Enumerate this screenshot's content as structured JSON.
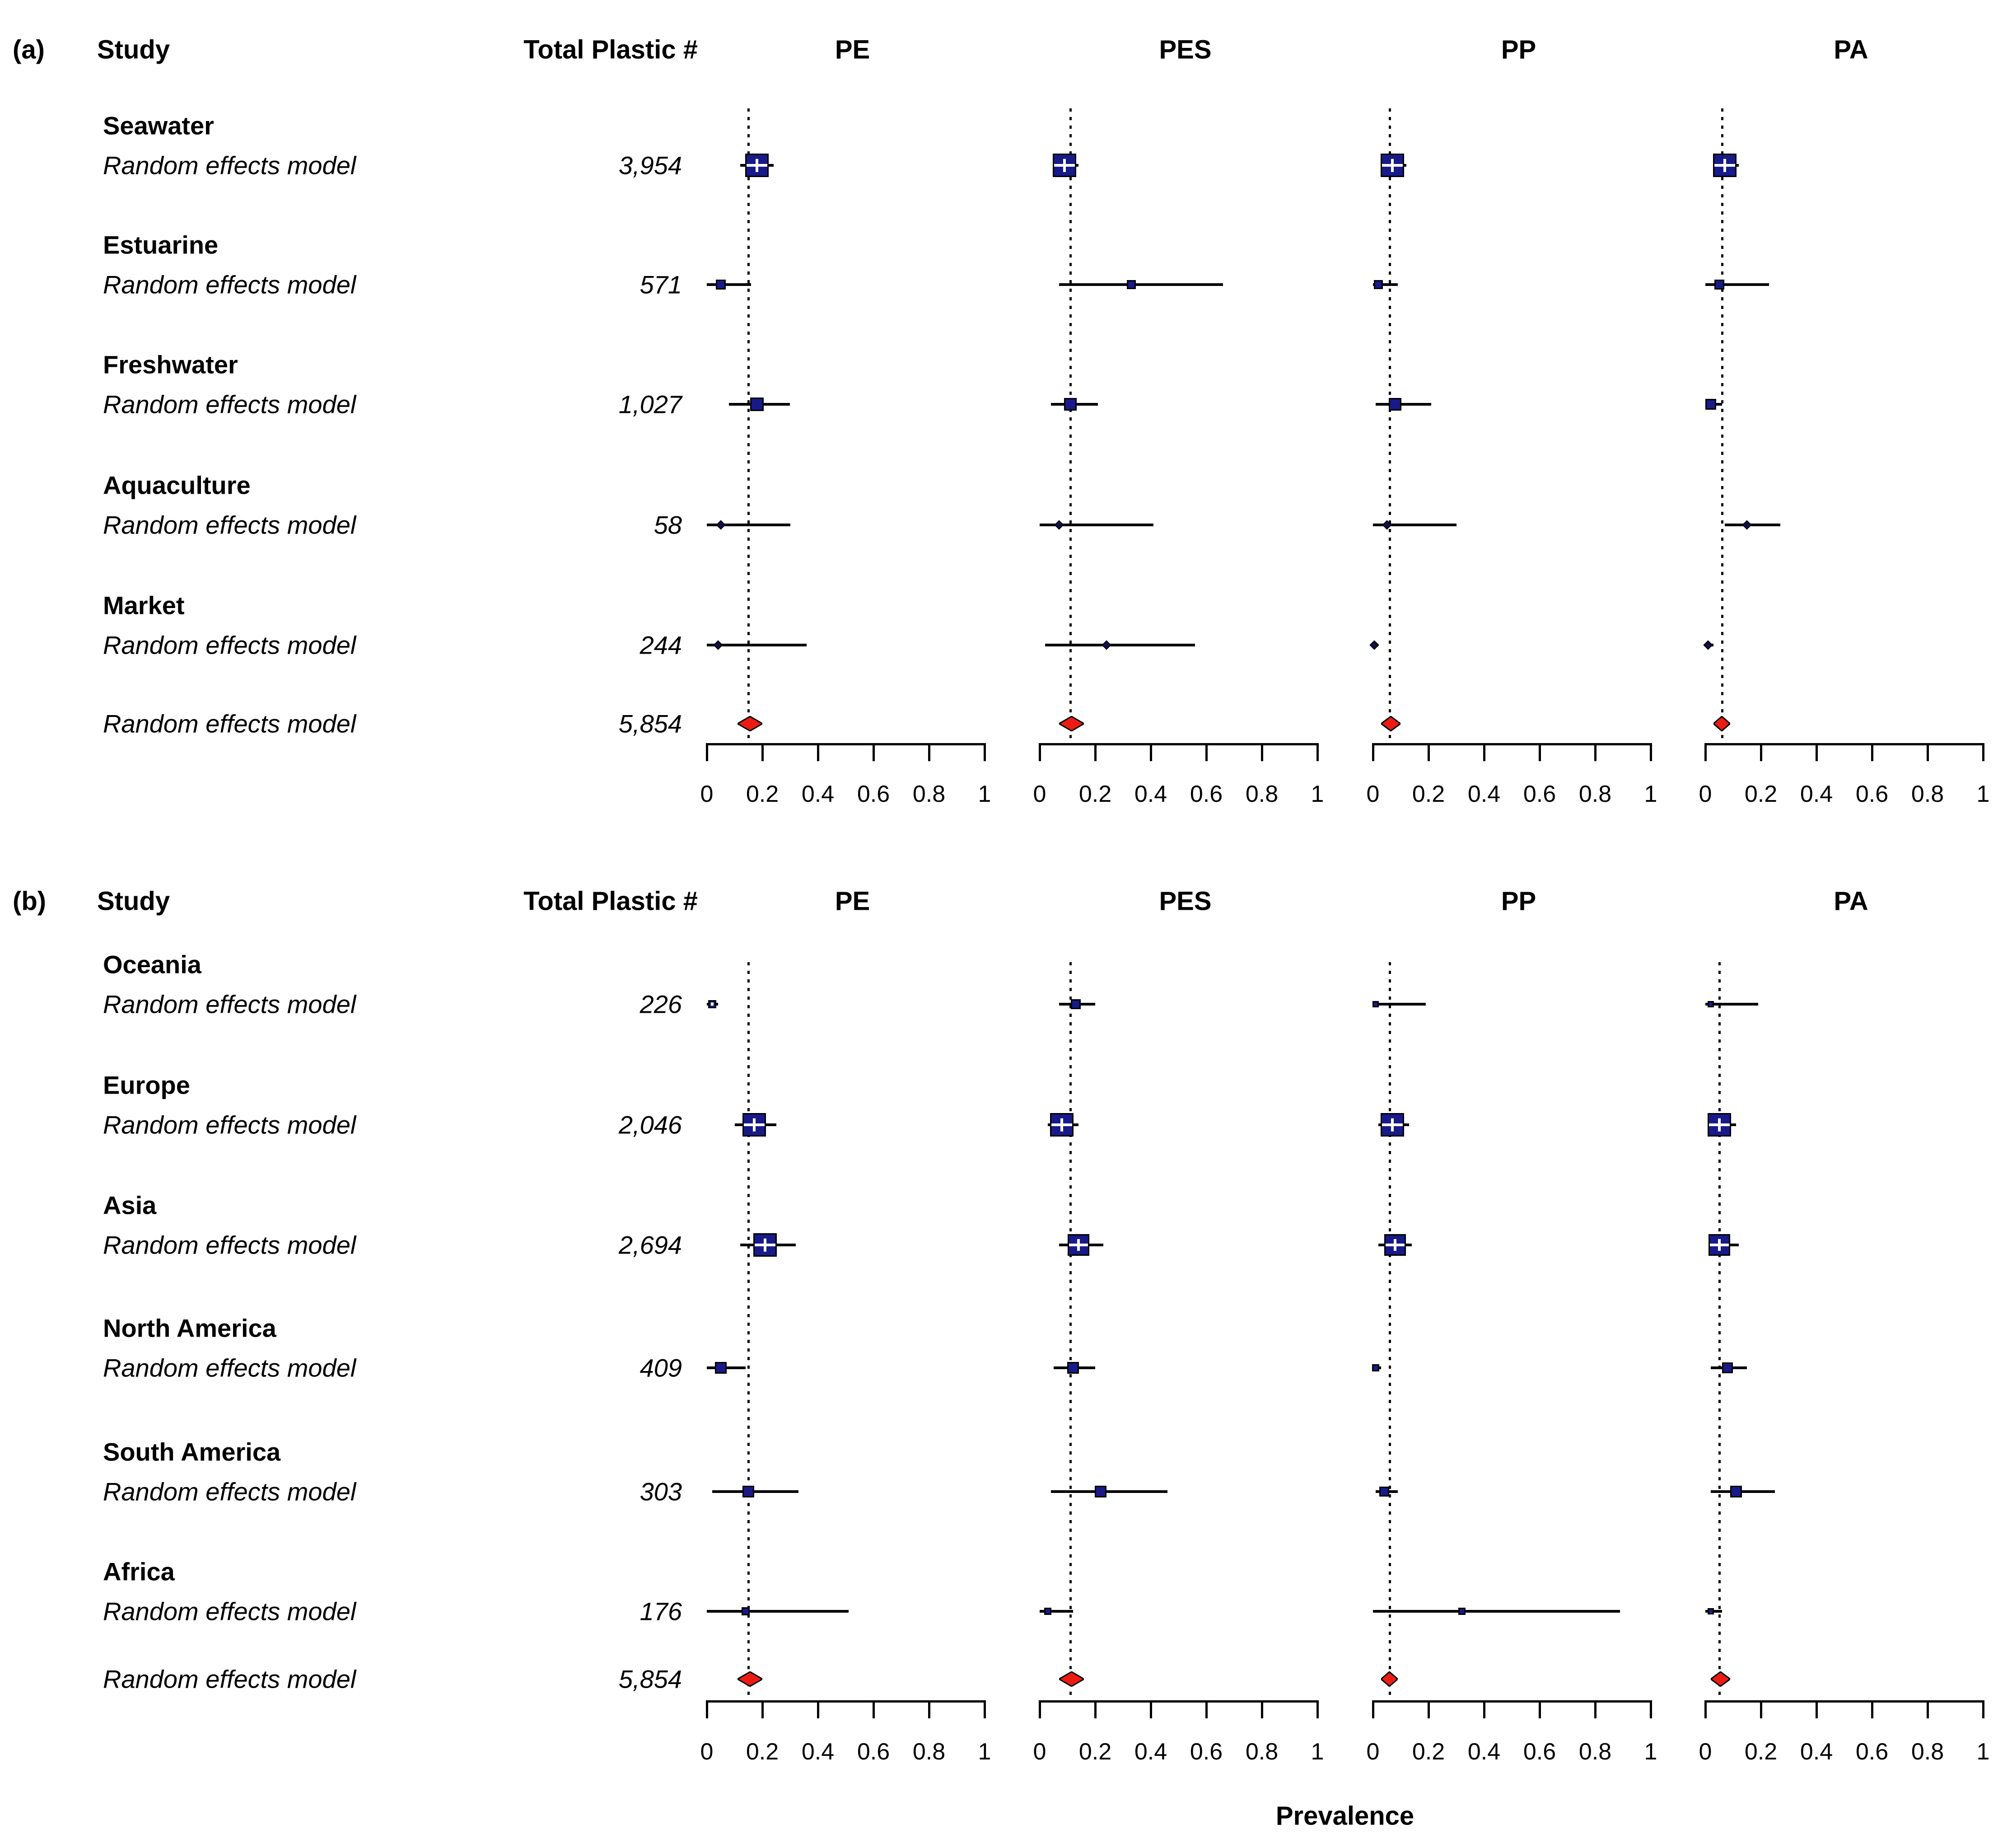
{
  "figure_title": "",
  "chart_data": {
    "type": "forest",
    "xlabel": "Prevalence",
    "axis": {
      "min": 0,
      "max": 1,
      "ticks": [
        0,
        0.2,
        0.4,
        0.6,
        0.8,
        1
      ]
    },
    "polymers": [
      "PE",
      "PES",
      "PP",
      "PA"
    ],
    "colors": {
      "square_fill": "#181a89",
      "square_border": "#000000",
      "dot_fill": "#10104a",
      "diamond_fill": "#ec1c13",
      "diamond_border": "#000000",
      "text": "#000000",
      "background": "#ffffff"
    },
    "panels": [
      {
        "tag": "(a)",
        "col_headers": {
          "study": "Study",
          "total": "Total Plastic #"
        },
        "rows": [
          {
            "name": "Seawater",
            "model": "Random effects model",
            "total": "3,954",
            "cells": [
              {
                "est": 0.18,
                "lo": 0.12,
                "hi": 0.24,
                "size": 52,
                "shape": "square",
                "cross": true
              },
              {
                "est": 0.09,
                "lo": 0.05,
                "hi": 0.14,
                "size": 52,
                "shape": "square",
                "cross": true
              },
              {
                "est": 0.07,
                "lo": 0.03,
                "hi": 0.12,
                "size": 52,
                "shape": "square",
                "cross": true
              },
              {
                "est": 0.07,
                "lo": 0.04,
                "hi": 0.12,
                "size": 52,
                "shape": "square",
                "cross": true
              }
            ]
          },
          {
            "name": "Estuarine",
            "model": "Random effects model",
            "total": "571",
            "cells": [
              {
                "est": 0.05,
                "lo": 0.0,
                "hi": 0.16,
                "size": 22,
                "shape": "square"
              },
              {
                "est": 0.33,
                "lo": 0.07,
                "hi": 0.66,
                "size": 20,
                "shape": "square"
              },
              {
                "est": 0.02,
                "lo": 0.0,
                "hi": 0.09,
                "size": 20,
                "shape": "square"
              },
              {
                "est": 0.05,
                "lo": 0.0,
                "hi": 0.23,
                "size": 22,
                "shape": "square"
              }
            ]
          },
          {
            "name": "Freshwater",
            "model": "Random effects model",
            "total": "1,027",
            "cells": [
              {
                "est": 0.18,
                "lo": 0.08,
                "hi": 0.3,
                "size": 30,
                "shape": "square"
              },
              {
                "est": 0.11,
                "lo": 0.04,
                "hi": 0.21,
                "size": 28,
                "shape": "square"
              },
              {
                "est": 0.08,
                "lo": 0.01,
                "hi": 0.21,
                "size": 28,
                "shape": "square"
              },
              {
                "est": 0.02,
                "lo": 0.0,
                "hi": 0.06,
                "size": 24,
                "shape": "square"
              }
            ]
          },
          {
            "name": "Aquaculture",
            "model": "Random effects model",
            "total": "58",
            "cells": [
              {
                "est": 0.05,
                "lo": 0.0,
                "hi": 0.3,
                "shape": "dot"
              },
              {
                "est": 0.07,
                "lo": 0.0,
                "hi": 0.41,
                "shape": "dot"
              },
              {
                "est": 0.05,
                "lo": 0.0,
                "hi": 0.3,
                "shape": "dot"
              },
              {
                "est": 0.15,
                "lo": 0.07,
                "hi": 0.27,
                "shape": "dot"
              }
            ]
          },
          {
            "name": "Market",
            "model": "Random effects model",
            "total": "244",
            "cells": [
              {
                "est": 0.04,
                "lo": 0.0,
                "hi": 0.36,
                "shape": "dot"
              },
              {
                "est": 0.24,
                "lo": 0.02,
                "hi": 0.56,
                "shape": "dot"
              },
              {
                "est": 0.005,
                "lo": 0.0,
                "hi": 0.02,
                "shape": "dot"
              },
              {
                "est": 0.01,
                "lo": 0.0,
                "hi": 0.03,
                "shape": "dot"
              }
            ]
          }
        ],
        "overall": {
          "label": "Random effects model",
          "total": "5,854",
          "cells": [
            {
              "est": 0.15,
              "lo": 0.11,
              "hi": 0.2
            },
            {
              "est": 0.11,
              "lo": 0.07,
              "hi": 0.16
            },
            {
              "est": 0.06,
              "lo": 0.03,
              "hi": 0.1
            },
            {
              "est": 0.06,
              "lo": 0.03,
              "hi": 0.09
            }
          ]
        }
      },
      {
        "tag": "(b)",
        "col_headers": {
          "study": "Study",
          "total": "Total Plastic #"
        },
        "rows": [
          {
            "name": "Oceania",
            "model": "Random effects model",
            "total": "226",
            "cells": [
              {
                "est": 0.02,
                "lo": 0.0,
                "hi": 0.04,
                "size": 18,
                "shape": "square",
                "split": true
              },
              {
                "est": 0.13,
                "lo": 0.07,
                "hi": 0.2,
                "size": 22,
                "shape": "square"
              },
              {
                "est": 0.01,
                "lo": 0.0,
                "hi": 0.19,
                "size": 14,
                "shape": "square"
              },
              {
                "est": 0.02,
                "lo": 0.0,
                "hi": 0.19,
                "size": 14,
                "shape": "square"
              }
            ]
          },
          {
            "name": "Europe",
            "model": "Random effects model",
            "total": "2,046",
            "cells": [
              {
                "est": 0.17,
                "lo": 0.1,
                "hi": 0.25,
                "size": 52,
                "shape": "square",
                "cross": true
              },
              {
                "est": 0.08,
                "lo": 0.03,
                "hi": 0.14,
                "size": 52,
                "shape": "square",
                "cross": true
              },
              {
                "est": 0.07,
                "lo": 0.02,
                "hi": 0.13,
                "size": 52,
                "shape": "square",
                "cross": true
              },
              {
                "est": 0.05,
                "lo": 0.02,
                "hi": 0.11,
                "size": 52,
                "shape": "square",
                "cross": true
              }
            ]
          },
          {
            "name": "Asia",
            "model": "Random effects model",
            "total": "2,694",
            "cells": [
              {
                "est": 0.21,
                "lo": 0.12,
                "hi": 0.32,
                "size": 52,
                "shape": "square",
                "cross": true
              },
              {
                "est": 0.14,
                "lo": 0.07,
                "hi": 0.23,
                "size": 48,
                "shape": "square",
                "cross": true
              },
              {
                "est": 0.08,
                "lo": 0.02,
                "hi": 0.14,
                "size": 48,
                "shape": "square",
                "cross": true
              },
              {
                "est": 0.05,
                "lo": 0.02,
                "hi": 0.12,
                "size": 48,
                "shape": "square",
                "cross": true
              }
            ]
          },
          {
            "name": "North America",
            "model": "Random effects model",
            "total": "409",
            "cells": [
              {
                "est": 0.05,
                "lo": 0.0,
                "hi": 0.14,
                "size": 26,
                "shape": "square"
              },
              {
                "est": 0.12,
                "lo": 0.05,
                "hi": 0.2,
                "size": 26,
                "shape": "square"
              },
              {
                "est": 0.01,
                "lo": 0.0,
                "hi": 0.03,
                "size": 16,
                "shape": "square"
              },
              {
                "est": 0.08,
                "lo": 0.02,
                "hi": 0.15,
                "size": 24,
                "shape": "square"
              }
            ]
          },
          {
            "name": "South America",
            "model": "Random effects model",
            "total": "303",
            "cells": [
              {
                "est": 0.15,
                "lo": 0.02,
                "hi": 0.33,
                "size": 26,
                "shape": "square"
              },
              {
                "est": 0.22,
                "lo": 0.04,
                "hi": 0.46,
                "size": 26,
                "shape": "square"
              },
              {
                "est": 0.04,
                "lo": 0.01,
                "hi": 0.09,
                "size": 22,
                "shape": "square"
              },
              {
                "est": 0.11,
                "lo": 0.02,
                "hi": 0.25,
                "size": 26,
                "shape": "square"
              }
            ]
          },
          {
            "name": "Africa",
            "model": "Random effects model",
            "total": "176",
            "cells": [
              {
                "est": 0.14,
                "lo": 0.0,
                "hi": 0.51,
                "size": 18,
                "shape": "square"
              },
              {
                "est": 0.03,
                "lo": 0.0,
                "hi": 0.12,
                "size": 16,
                "shape": "square"
              },
              {
                "est": 0.32,
                "lo": 0.0,
                "hi": 0.89,
                "size": 16,
                "shape": "square"
              },
              {
                "est": 0.02,
                "lo": 0.0,
                "hi": 0.06,
                "size": 14,
                "shape": "square"
              }
            ]
          }
        ],
        "overall": {
          "label": "Random effects model",
          "total": "5,854",
          "cells": [
            {
              "est": 0.15,
              "lo": 0.11,
              "hi": 0.2
            },
            {
              "est": 0.11,
              "lo": 0.07,
              "hi": 0.16
            },
            {
              "est": 0.06,
              "lo": 0.03,
              "hi": 0.09
            },
            {
              "est": 0.05,
              "lo": 0.02,
              "hi": 0.09
            }
          ]
        }
      }
    ]
  }
}
